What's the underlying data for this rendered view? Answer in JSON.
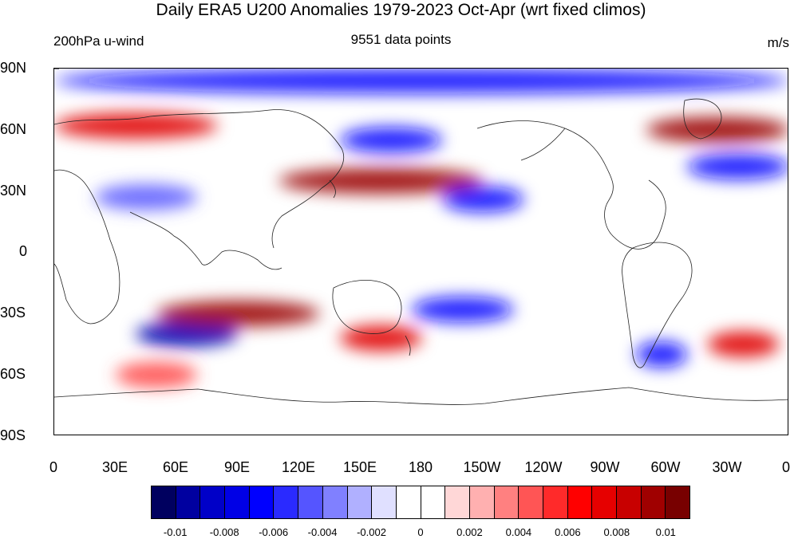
{
  "title": "Daily ERA5 U200 Anomalies 1979-2023 Oct-Apr (wrt fixed climos)",
  "left_string": "200hPa u-wind",
  "center_string": "9551 data points",
  "right_string": "m/s",
  "lat_labels": [
    "90N",
    "60N",
    "30N",
    "0",
    "30S",
    "60S",
    "90S"
  ],
  "lon_labels": [
    "0",
    "30E",
    "60E",
    "90E",
    "120E",
    "150E",
    "180",
    "150W",
    "120W",
    "90W",
    "60W",
    "30W",
    "0"
  ],
  "colorbar": {
    "colors": [
      "#00005f",
      "#0000a0",
      "#0000c8",
      "#0000e6",
      "#0000ff",
      "#2a2aff",
      "#5555ff",
      "#8080ff",
      "#b0b0ff",
      "#e0e0ff",
      "#ffffff",
      "#ffffff",
      "#ffd7d7",
      "#ffb0b0",
      "#ff8080",
      "#ff5555",
      "#ff2a2a",
      "#ff0000",
      "#e60000",
      "#c80000",
      "#a00000",
      "#780000"
    ],
    "labels": [
      "-0.01",
      "-0.008",
      "-0.006",
      "-0.004",
      "-0.002",
      "0",
      "0.002",
      "0.004",
      "0.006",
      "0.008",
      "0.01"
    ]
  },
  "chart_data": {
    "type": "heatmap",
    "title": "Daily ERA5 U200 Anomalies 1979-2023 Oct-Apr (wrt fixed climos)",
    "variable": "200hPa u-wind",
    "units": "m/s",
    "n_points": 9551,
    "lon_range": [
      0,
      360
    ],
    "lat_range": [
      -90,
      90
    ],
    "contour_levels": [
      -0.01,
      -0.009,
      -0.008,
      -0.007,
      -0.006,
      -0.005,
      -0.004,
      -0.003,
      -0.002,
      -0.001,
      0,
      0.001,
      0.002,
      0.003,
      0.004,
      0.005,
      0.006,
      0.007,
      0.008,
      0.009,
      0.01
    ],
    "anomaly_features": [
      {
        "name": "arctic negative band",
        "sign": "negative",
        "lat": 84,
        "lon_from": 0,
        "lon_to": 360,
        "magnitude": 0.007
      },
      {
        "name": "eurasian positive 62N",
        "sign": "positive",
        "lat": 62,
        "lon_from": 0,
        "lon_to": 80,
        "magnitude": 0.008
      },
      {
        "name": "atlantic positive 62N",
        "sign": "positive",
        "lat": 60,
        "lon_from": 290,
        "lon_to": 360,
        "magnitude": 0.009
      },
      {
        "name": "west pacific jet positive",
        "sign": "positive",
        "lat": 35,
        "lon_from": 110,
        "lon_to": 210,
        "magnitude": 0.01
      },
      {
        "name": "north pacific negative",
        "sign": "negative",
        "lat": 55,
        "lon_from": 140,
        "lon_to": 190,
        "magnitude": 0.007
      },
      {
        "name": "subtropical asia negative",
        "sign": "negative",
        "lat": 27,
        "lon_from": 20,
        "lon_to": 70,
        "magnitude": 0.006
      },
      {
        "name": "east pacific negative",
        "sign": "negative",
        "lat": 26,
        "lon_from": 190,
        "lon_to": 230,
        "magnitude": 0.008
      },
      {
        "name": "north atlantic negative",
        "sign": "negative",
        "lat": 42,
        "lon_from": 310,
        "lon_to": 360,
        "magnitude": 0.008
      },
      {
        "name": "southern indian negative",
        "sign": "negative",
        "lat": -40,
        "lon_from": 40,
        "lon_to": 90,
        "magnitude": 0.009
      },
      {
        "name": "southern indian positive",
        "sign": "positive",
        "lat": -30,
        "lon_from": 50,
        "lon_to": 130,
        "magnitude": 0.009
      },
      {
        "name": "tasman positive",
        "sign": "positive",
        "lat": -42,
        "lon_from": 140,
        "lon_to": 180,
        "magnitude": 0.007
      },
      {
        "name": "south pacific negative",
        "sign": "negative",
        "lat": -28,
        "lon_from": 175,
        "lon_to": 225,
        "magnitude": 0.008
      },
      {
        "name": "south atlantic positive",
        "sign": "positive",
        "lat": -45,
        "lon_from": 320,
        "lon_to": 355,
        "magnitude": 0.008
      },
      {
        "name": "drake negative",
        "sign": "negative",
        "lat": -50,
        "lon_from": 285,
        "lon_to": 310,
        "magnitude": 0.007
      },
      {
        "name": "southern ocean positive",
        "sign": "positive",
        "lat": -60,
        "lon_from": 30,
        "lon_to": 70,
        "magnitude": 0.006
      }
    ]
  }
}
